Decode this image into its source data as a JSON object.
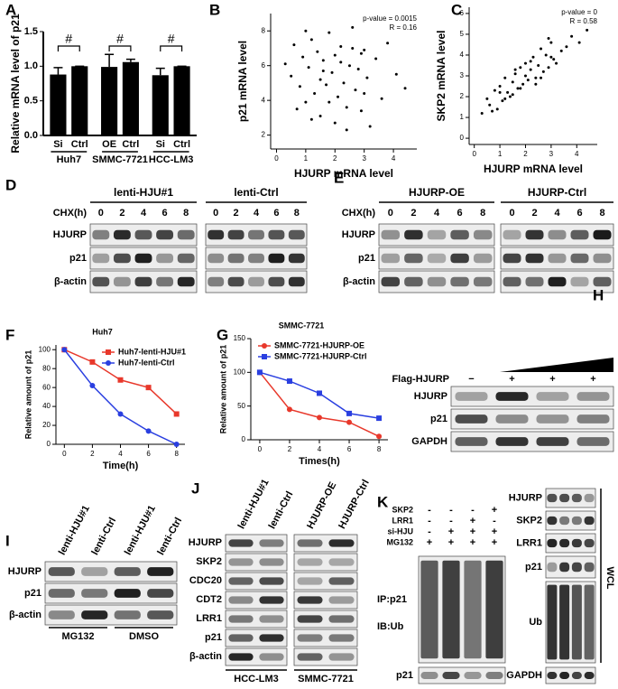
{
  "chart_data": [
    {
      "type": "bar",
      "panel": "A",
      "ylabel": "Relative mRNA level of p21",
      "categories": [
        "Si",
        "Ctrl",
        "OE",
        "Ctrl",
        "Si",
        "Ctrl"
      ],
      "groups": [
        "Huh7",
        "SMMC-7721",
        "HCC-LM3"
      ],
      "values": [
        0.88,
        1.0,
        0.99,
        1.06,
        0.87,
        1.0
      ],
      "errors": [
        0.1,
        0,
        0.18,
        0.04,
        0.1,
        0
      ],
      "annotations": [
        "#",
        "#",
        "#"
      ],
      "color": "#000000",
      "ylim": [
        0,
        1.5
      ],
      "yticks": [
        {
          "value": 0,
          "label": "0.0"
        },
        {
          "value": 0.5,
          "label": "0.5"
        },
        {
          "value": 1.0,
          "label": "1.0"
        },
        {
          "value": 1.5,
          "label": "1.5"
        }
      ]
    },
    {
      "type": "scatter",
      "panel": "B",
      "xlabel": "HJURP mRNA level",
      "ylabel": "p21 mRNA level",
      "annotations": [
        "p-value = 0.0015",
        "R = 0.16"
      ],
      "color": "#000000",
      "x": [
        0.3,
        0.5,
        0.6,
        0.8,
        0.9,
        1.0,
        1.1,
        1.2,
        1.3,
        1.4,
        1.5,
        1.5,
        1.6,
        1.7,
        1.8,
        1.9,
        2.0,
        2.0,
        2.1,
        2.2,
        2.3,
        2.4,
        2.5,
        2.6,
        2.7,
        2.8,
        2.9,
        3.0,
        3.1,
        3.2,
        3.4,
        3.6,
        3.8,
        4.1,
        4.4,
        0.7,
        1.2,
        1.8,
        2.2,
        2.6,
        3.0,
        1.0,
        1.6,
        2.4,
        2.9
      ],
      "values": [
        6.1,
        5.4,
        7.2,
        4.8,
        6.5,
        3.9,
        5.9,
        7.5,
        4.4,
        6.8,
        5.2,
        3.1,
        6.3,
        4.9,
        7.9,
        5.6,
        6.6,
        2.7,
        4.2,
        7.1,
        5.0,
        3.6,
        6.0,
        8.2,
        4.6,
        5.8,
        3.4,
        6.9,
        5.3,
        2.5,
        6.4,
        4.1,
        7.3,
        5.5,
        4.7,
        3.5,
        2.9,
        3.9,
        6.2,
        7.0,
        4.4,
        8.0,
        5.7,
        2.3,
        6.7
      ],
      "xlim": [
        -0.2,
        4.8
      ],
      "xticks": [
        0,
        1,
        2,
        3,
        4
      ],
      "ylim": [
        1.2,
        9
      ],
      "yticks": [
        2,
        4,
        6,
        8
      ]
    },
    {
      "type": "scatter",
      "panel": "C",
      "xlabel": "HJURP mRNA level",
      "ylabel": "SKP2 mRNA level",
      "annotations": [
        "p-value = 0",
        "R = 0.58"
      ],
      "color": "#000000",
      "x": [
        0.3,
        0.5,
        0.6,
        0.8,
        0.9,
        1.0,
        1.1,
        1.2,
        1.3,
        1.4,
        1.5,
        1.5,
        1.6,
        1.7,
        1.8,
        1.9,
        2.0,
        2.0,
        2.1,
        2.2,
        2.3,
        2.4,
        2.5,
        2.6,
        2.7,
        2.8,
        2.9,
        3.0,
        3.1,
        3.2,
        3.4,
        3.6,
        3.8,
        4.1,
        4.4,
        0.7,
        1.2,
        1.8,
        2.2,
        2.6,
        3.0,
        1.0,
        1.6,
        2.4,
        2.9
      ],
      "values": [
        1.2,
        1.9,
        1.6,
        2.3,
        1.4,
        2.5,
        1.8,
        2.9,
        2.2,
        2.0,
        2.7,
        2.1,
        3.1,
        2.4,
        3.4,
        2.6,
        3.0,
        3.6,
        2.8,
        3.3,
        3.9,
        2.9,
        3.5,
        4.3,
        3.2,
        4.0,
        3.4,
        4.6,
        3.8,
        3.6,
        4.2,
        4.4,
        4.9,
        4.6,
        5.2,
        1.3,
        1.9,
        2.4,
        3.7,
        2.9,
        3.9,
        2.2,
        3.3,
        2.6,
        4.8
      ],
      "xlim": [
        -0.2,
        4.8
      ],
      "xticks": [
        0,
        1,
        2,
        3,
        4
      ],
      "ylim": [
        -0.3,
        6.3
      ],
      "yticks": [
        0,
        1,
        2,
        3,
        4,
        5,
        6
      ]
    },
    {
      "type": "line",
      "panel": "F",
      "title": "Huh7",
      "xlabel": "Time(h)",
      "ylabel": "Relative amount of p21",
      "legend": "upper right",
      "x": [
        0,
        2,
        4,
        6,
        8
      ],
      "series": [
        {
          "name": "Huh7-lenti-HJU#1",
          "color": "#e8382b",
          "marker": "square",
          "values": [
            100,
            87,
            68,
            60,
            32
          ]
        },
        {
          "name": "Huh7-lenti-Ctrl",
          "color": "#2a3fe0",
          "marker": "circle",
          "values": [
            100,
            62,
            32,
            14,
            0
          ]
        }
      ],
      "xlim": [
        -0.6,
        8.6
      ],
      "xticks": [
        0,
        2,
        4,
        6,
        8
      ],
      "ylim": [
        0,
        105
      ],
      "yticks": [
        0,
        20,
        40,
        60,
        80,
        100
      ]
    },
    {
      "type": "line",
      "panel": "G",
      "title": "SMMC-7721",
      "xlabel": "Times(h)",
      "ylabel": "Relative amount of p21",
      "legend": "upper left",
      "x": [
        0,
        2,
        4,
        6,
        8
      ],
      "series": [
        {
          "name": "SMMC-7721-HJURP-OE",
          "color": "#e8382b",
          "marker": "circle",
          "values": [
            100,
            45,
            33,
            26,
            5
          ]
        },
        {
          "name": "SMMC-7721-HJURP-Ctrl",
          "color": "#2a3fe0",
          "marker": "square",
          "values": [
            100,
            87,
            69,
            39,
            32
          ]
        }
      ],
      "xlim": [
        -0.6,
        8.6
      ],
      "xticks": [
        0,
        2,
        4,
        6,
        8
      ],
      "ylim": [
        0,
        150
      ],
      "yticks": [
        0,
        50,
        100,
        150
      ]
    }
  ],
  "blots": [
    {
      "panel": "D",
      "groups": [
        "lenti-HJU#1",
        "lenti-Ctrl"
      ],
      "lane_header": "CHX(h)",
      "lanes": [
        "0",
        "2",
        "4",
        "6",
        "8"
      ],
      "rows": [
        "HJURP",
        "p21",
        "β-actin"
      ]
    },
    {
      "panel": "E",
      "groups": [
        "HJURP-OE",
        "HJURP-Ctrl"
      ],
      "lane_header": "CHX(h)",
      "lanes": [
        "0",
        "2",
        "4",
        "6",
        "8"
      ],
      "rows": [
        "HJURP",
        "p21",
        "β-actin"
      ]
    },
    {
      "panel": "H",
      "lane_header": "Flag-HJURP",
      "lanes": [
        "−",
        "+",
        "+",
        "+"
      ],
      "rows": [
        "HJURP",
        "p21",
        "GAPDH"
      ]
    },
    {
      "panel": "I",
      "lanes": [
        "lenti-HJU#1",
        "lenti-Ctrl",
        "lenti-HJU#1",
        "lenti-Ctrl"
      ],
      "rows": [
        "HJURP",
        "p21",
        "β-actin"
      ],
      "groups": [
        "MG132",
        "DMSO"
      ]
    },
    {
      "panel": "J",
      "lanes": [
        "lenti-HJU#1",
        "lenti-Ctrl",
        "HJURP-OE",
        "HJURP-Ctrl"
      ],
      "rows": [
        "HJURP",
        "SKP2",
        "CDC20",
        "CDT2",
        "LRR1",
        "p21",
        "β-actin"
      ],
      "groups": [
        "HCC-LM3",
        "SMMC-7721"
      ]
    },
    {
      "panel": "K",
      "conditions": [
        {
          "name": "SKP2",
          "signs": [
            "-",
            "-",
            "-",
            "+"
          ]
        },
        {
          "name": "LRR1",
          "signs": [
            "-",
            "-",
            "+",
            "-"
          ]
        },
        {
          "name": "si-HJU",
          "signs": [
            "-",
            "+",
            "+",
            "+"
          ]
        },
        {
          "name": "MG132",
          "signs": [
            "+",
            "+",
            "+",
            "+"
          ]
        }
      ],
      "ip_labels": [
        "IP:p21",
        "IB:Ub"
      ],
      "input_label": "p21",
      "wcl_rows": [
        "HJURP",
        "SKP2",
        "LRR1",
        "p21",
        "Ub",
        "GAPDH"
      ],
      "wcl_label": "WCL"
    }
  ]
}
